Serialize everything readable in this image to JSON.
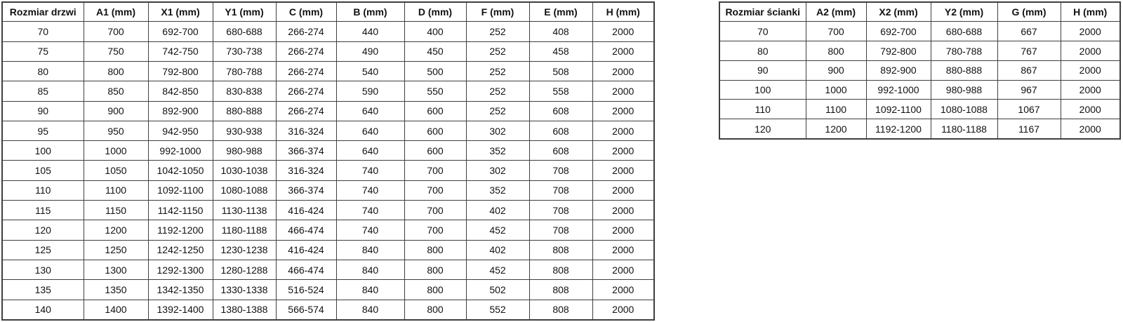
{
  "page": {
    "background_color": "#ffffff",
    "border_color": "#3f3f3f",
    "text_color": "#111111"
  },
  "tables": [
    {
      "name": "door-sizes",
      "headers": [
        "Rozmiar drzwi",
        "A1 (mm)",
        "X1 (mm)",
        "Y1 (mm)",
        "C (mm)",
        "B (mm)",
        "D (mm)",
        "F (mm)",
        "E (mm)",
        "H (mm)"
      ],
      "rows": [
        [
          "70",
          "700",
          "692-700",
          "680-688",
          "266-274",
          "440",
          "400",
          "252",
          "408",
          "2000"
        ],
        [
          "75",
          "750",
          "742-750",
          "730-738",
          "266-274",
          "490",
          "450",
          "252",
          "458",
          "2000"
        ],
        [
          "80",
          "800",
          "792-800",
          "780-788",
          "266-274",
          "540",
          "500",
          "252",
          "508",
          "2000"
        ],
        [
          "85",
          "850",
          "842-850",
          "830-838",
          "266-274",
          "590",
          "550",
          "252",
          "558",
          "2000"
        ],
        [
          "90",
          "900",
          "892-900",
          "880-888",
          "266-274",
          "640",
          "600",
          "252",
          "608",
          "2000"
        ],
        [
          "95",
          "950",
          "942-950",
          "930-938",
          "316-324",
          "640",
          "600",
          "302",
          "608",
          "2000"
        ],
        [
          "100",
          "1000",
          "992-1000",
          "980-988",
          "366-374",
          "640",
          "600",
          "352",
          "608",
          "2000"
        ],
        [
          "105",
          "1050",
          "1042-1050",
          "1030-1038",
          "316-324",
          "740",
          "700",
          "302",
          "708",
          "2000"
        ],
        [
          "110",
          "1100",
          "1092-1100",
          "1080-1088",
          "366-374",
          "740",
          "700",
          "352",
          "708",
          "2000"
        ],
        [
          "115",
          "1150",
          "1142-1150",
          "1130-1138",
          "416-424",
          "740",
          "700",
          "402",
          "708",
          "2000"
        ],
        [
          "120",
          "1200",
          "1192-1200",
          "1180-1188",
          "466-474",
          "740",
          "700",
          "452",
          "708",
          "2000"
        ],
        [
          "125",
          "1250",
          "1242-1250",
          "1230-1238",
          "416-424",
          "840",
          "800",
          "402",
          "808",
          "2000"
        ],
        [
          "130",
          "1300",
          "1292-1300",
          "1280-1288",
          "466-474",
          "840",
          "800",
          "452",
          "808",
          "2000"
        ],
        [
          "135",
          "1350",
          "1342-1350",
          "1330-1338",
          "516-524",
          "840",
          "800",
          "502",
          "808",
          "2000"
        ],
        [
          "140",
          "1400",
          "1392-1400",
          "1380-1388",
          "566-574",
          "840",
          "800",
          "552",
          "808",
          "2000"
        ]
      ]
    },
    {
      "name": "wall-sizes",
      "headers": [
        "Rozmiar ścianki",
        "A2 (mm)",
        "X2 (mm)",
        "Y2 (mm)",
        "G (mm)",
        "H (mm)"
      ],
      "rows": [
        [
          "70",
          "700",
          "692-700",
          "680-688",
          "667",
          "2000"
        ],
        [
          "80",
          "800",
          "792-800",
          "780-788",
          "767",
          "2000"
        ],
        [
          "90",
          "900",
          "892-900",
          "880-888",
          "867",
          "2000"
        ],
        [
          "100",
          "1000",
          "992-1000",
          "980-988",
          "967",
          "2000"
        ],
        [
          "110",
          "1100",
          "1092-1100",
          "1080-1088",
          "1067",
          "2000"
        ],
        [
          "120",
          "1200",
          "1192-1200",
          "1180-1188",
          "1167",
          "2000"
        ]
      ]
    }
  ]
}
